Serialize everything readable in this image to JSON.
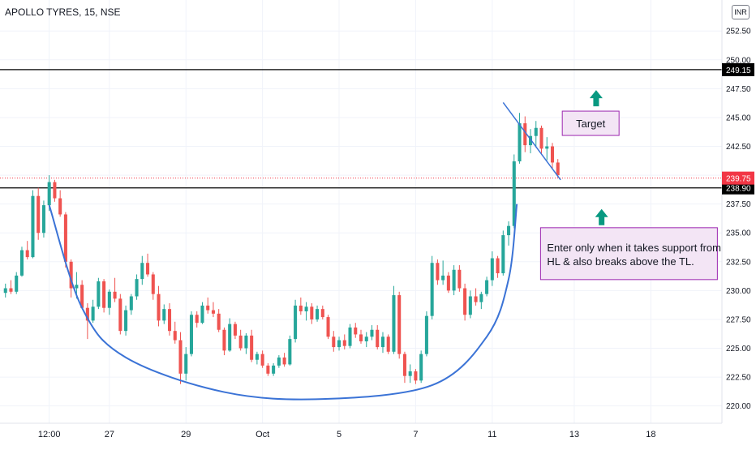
{
  "header": {
    "symbol": "APOLLO TYRES, 15, NSE",
    "currency": "INR"
  },
  "colors": {
    "up": "#26a69a",
    "down": "#ef5350",
    "curve": "#3b73d6",
    "line": "#000000",
    "current": "#f23645",
    "arrow": "#089981",
    "note_border": "#9c27b0",
    "note_fill": "#f3e5f5",
    "grid": "#f0f3fa"
  },
  "chart_data": {
    "type": "candlestick",
    "interval": "15",
    "y_range": [
      218.5,
      253.5
    ],
    "x_range": [
      -1,
      131
    ],
    "y_ticks": [
      "220.00",
      "222.50",
      "225.00",
      "227.50",
      "230.00",
      "232.50",
      "235.00",
      "237.50",
      "240.00",
      "242.50",
      "245.00",
      "247.50",
      "250.00",
      "252.50"
    ],
    "x_ticks": [
      {
        "label": "12:00",
        "x": 8
      },
      {
        "label": "27",
        "x": 19
      },
      {
        "label": "29",
        "x": 33
      },
      {
        "label": "Oct",
        "x": 47
      },
      {
        "label": "5",
        "x": 61
      },
      {
        "label": "7",
        "x": 75
      },
      {
        "label": "11",
        "x": 89
      },
      {
        "label": "13",
        "x": 104
      },
      {
        "label": "18",
        "x": 118
      }
    ],
    "horizontal_lines": [
      {
        "value": 249.15,
        "label": "249.15"
      },
      {
        "value": 238.9,
        "label": "238.90"
      }
    ],
    "current_price": {
      "value": 239.75,
      "label": "239.75"
    },
    "price_curve": [
      [
        8,
        237.4
      ],
      [
        14,
        228.5
      ],
      [
        22,
        224.2
      ],
      [
        40,
        221.2
      ],
      [
        58,
        220.6
      ],
      [
        78,
        221.8
      ],
      [
        88,
        226
      ],
      [
        92,
        231
      ],
      [
        93.5,
        237.5
      ]
    ],
    "trendline": [
      [
        91,
        246.3
      ],
      [
        101.5,
        239.6
      ]
    ],
    "annotations": [
      {
        "text": "Target",
        "x": 107,
        "y": 244.5
      },
      {
        "text": "Enter only when it takes support from HL & also breaks above the TL.",
        "x": 114,
        "y": 233.2
      }
    ],
    "arrows": [
      {
        "x": 108,
        "y": 246.6
      },
      {
        "x": 109,
        "y": 236.3
      }
    ],
    "candles": [
      [
        0,
        229.8,
        230.6,
        229.4,
        230.2
      ],
      [
        1,
        230.2,
        230.9,
        229.7,
        229.9
      ],
      [
        2,
        229.9,
        231.6,
        229.7,
        231.3
      ],
      [
        3,
        231.3,
        233.8,
        231.2,
        233.5
      ],
      [
        4,
        233.5,
        234.3,
        232.7,
        232.9
      ],
      [
        5,
        232.9,
        238.7,
        232.8,
        238.2
      ],
      [
        6,
        238.2,
        238.9,
        234.4,
        235.0
      ],
      [
        7,
        235.0,
        237.8,
        234.6,
        237.4
      ],
      [
        8,
        237.4,
        240.0,
        236.9,
        239.4
      ],
      [
        9,
        239.4,
        239.6,
        237.7,
        238.0
      ],
      [
        10,
        238.0,
        238.7,
        236.4,
        236.6
      ],
      [
        11,
        236.6,
        236.8,
        232.0,
        232.5
      ],
      [
        12,
        232.5,
        232.7,
        229.4,
        230.2
      ],
      [
        13,
        230.2,
        231.6,
        229.3,
        230.5
      ],
      [
        14,
        230.5,
        230.9,
        228.4,
        228.5
      ],
      [
        15,
        228.5,
        228.9,
        225.8,
        227.4
      ],
      [
        16,
        227.4,
        229.2,
        227.2,
        228.6
      ],
      [
        17,
        228.6,
        231.1,
        228.4,
        230.8
      ],
      [
        18,
        230.8,
        231.0,
        228.1,
        228.5
      ],
      [
        19,
        228.5,
        230.1,
        227.9,
        229.9
      ],
      [
        20,
        229.9,
        231.1,
        229.0,
        229.3
      ],
      [
        21,
        229.3,
        229.7,
        226.2,
        226.5
      ],
      [
        22,
        226.5,
        228.7,
        226.1,
        228.3
      ],
      [
        23,
        228.3,
        229.7,
        227.9,
        229.5
      ],
      [
        24,
        229.5,
        231.4,
        229.2,
        231.0
      ],
      [
        25,
        231.0,
        233.0,
        230.5,
        232.4
      ],
      [
        26,
        232.4,
        233.2,
        231.2,
        231.4
      ],
      [
        27,
        231.4,
        231.6,
        229.2,
        229.7
      ],
      [
        28,
        229.7,
        230.4,
        226.9,
        227.4
      ],
      [
        29,
        227.4,
        228.8,
        227.1,
        228.4
      ],
      [
        30,
        228.4,
        228.9,
        226.1,
        226.5
      ],
      [
        31,
        226.5,
        227.3,
        225.4,
        225.7
      ],
      [
        32,
        225.7,
        226.4,
        221.9,
        222.8
      ],
      [
        33,
        222.8,
        225.1,
        222.2,
        224.5
      ],
      [
        34,
        224.5,
        228.2,
        224.3,
        227.9
      ],
      [
        35,
        227.9,
        228.2,
        226.8,
        227.2
      ],
      [
        36,
        227.2,
        229.0,
        227.1,
        228.7
      ],
      [
        37,
        228.7,
        229.4,
        228.0,
        228.3
      ],
      [
        38,
        228.3,
        229.0,
        227.7,
        228.0
      ],
      [
        39,
        228.0,
        228.4,
        226.4,
        226.6
      ],
      [
        40,
        226.6,
        226.8,
        224.4,
        224.8
      ],
      [
        41,
        224.8,
        227.6,
        224.7,
        227.1
      ],
      [
        42,
        227.1,
        227.3,
        225.8,
        226.1
      ],
      [
        43,
        226.1,
        226.6,
        224.8,
        225.0
      ],
      [
        44,
        225.0,
        226.3,
        224.5,
        226.1
      ],
      [
        45,
        226.1,
        226.6,
        223.8,
        224.0
      ],
      [
        46,
        224.0,
        224.7,
        223.6,
        224.5
      ],
      [
        47,
        224.5,
        224.8,
        223.3,
        223.5
      ],
      [
        48,
        223.5,
        223.7,
        222.6,
        222.8
      ],
      [
        49,
        222.8,
        223.7,
        222.6,
        223.5
      ],
      [
        50,
        223.5,
        224.4,
        223.3,
        224.2
      ],
      [
        51,
        224.2,
        224.6,
        223.4,
        223.6
      ],
      [
        52,
        223.6,
        226.1,
        223.5,
        225.8
      ],
      [
        53,
        225.8,
        229.2,
        225.5,
        228.7
      ],
      [
        54,
        228.7,
        229.4,
        227.9,
        228.2
      ],
      [
        55,
        228.2,
        229.0,
        227.4,
        228.6
      ],
      [
        56,
        228.6,
        228.9,
        227.1,
        227.5
      ],
      [
        57,
        227.5,
        228.7,
        227.3,
        228.4
      ],
      [
        58,
        228.4,
        228.7,
        227.5,
        227.7
      ],
      [
        59,
        227.7,
        227.9,
        225.8,
        226.0
      ],
      [
        60,
        226.0,
        226.5,
        224.7,
        225.1
      ],
      [
        61,
        225.1,
        226.0,
        224.8,
        225.7
      ],
      [
        62,
        225.7,
        226.2,
        224.9,
        225.2
      ],
      [
        63,
        225.2,
        227.1,
        225.0,
        226.8
      ],
      [
        64,
        226.8,
        227.2,
        225.9,
        226.2
      ],
      [
        65,
        226.2,
        226.6,
        225.4,
        225.6
      ],
      [
        66,
        225.6,
        226.4,
        225.1,
        226.0
      ],
      [
        67,
        226.0,
        227.0,
        225.7,
        226.6
      ],
      [
        68,
        226.6,
        227.0,
        224.9,
        225.1
      ],
      [
        69,
        225.1,
        226.4,
        224.6,
        226.0
      ],
      [
        70,
        226.0,
        226.2,
        224.5,
        224.7
      ],
      [
        71,
        224.7,
        230.4,
        224.5,
        229.6
      ],
      [
        72,
        229.6,
        229.9,
        224.1,
        224.5
      ],
      [
        73,
        224.5,
        224.7,
        222.0,
        222.6
      ],
      [
        74,
        222.6,
        223.6,
        222.0,
        223.0
      ],
      [
        75,
        223.0,
        223.2,
        221.9,
        222.2
      ],
      [
        76,
        222.2,
        224.8,
        222.0,
        224.5
      ],
      [
        77,
        224.5,
        228.2,
        224.3,
        227.8
      ],
      [
        78,
        227.8,
        233.0,
        227.5,
        232.4
      ],
      [
        79,
        232.4,
        232.7,
        230.5,
        230.9
      ],
      [
        80,
        230.9,
        232.6,
        230.5,
        231.3
      ],
      [
        81,
        231.3,
        231.6,
        229.8,
        230.0
      ],
      [
        82,
        230.0,
        232.2,
        229.6,
        231.8
      ],
      [
        83,
        231.8,
        232.2,
        229.9,
        230.2
      ],
      [
        84,
        230.2,
        230.6,
        227.4,
        227.9
      ],
      [
        85,
        227.9,
        230.0,
        227.6,
        229.5
      ],
      [
        86,
        229.5,
        230.2,
        228.7,
        229.0
      ],
      [
        87,
        229.0,
        229.9,
        228.4,
        229.7
      ],
      [
        88,
        229.7,
        231.2,
        229.5,
        230.9
      ],
      [
        89,
        230.9,
        233.4,
        230.4,
        232.8
      ],
      [
        90,
        232.8,
        233.0,
        231.1,
        231.5
      ],
      [
        91,
        231.5,
        235.2,
        231.3,
        234.8
      ],
      [
        92,
        234.8,
        236.0,
        233.9,
        235.6
      ],
      [
        93,
        235.6,
        241.8,
        235.4,
        241.2
      ],
      [
        94,
        241.2,
        245.4,
        241.0,
        244.5
      ],
      [
        95,
        244.5,
        245.1,
        242.0,
        242.6
      ],
      [
        96,
        242.6,
        244.0,
        241.9,
        243.4
      ],
      [
        97,
        243.4,
        244.7,
        242.4,
        244.1
      ],
      [
        98,
        244.1,
        244.3,
        241.8,
        242.3
      ],
      [
        99,
        242.3,
        243.3,
        241.3,
        242.5
      ],
      [
        100,
        242.5,
        242.8,
        240.6,
        241.1
      ],
      [
        101,
        241.1,
        241.4,
        239.8,
        240.0
      ]
    ]
  }
}
